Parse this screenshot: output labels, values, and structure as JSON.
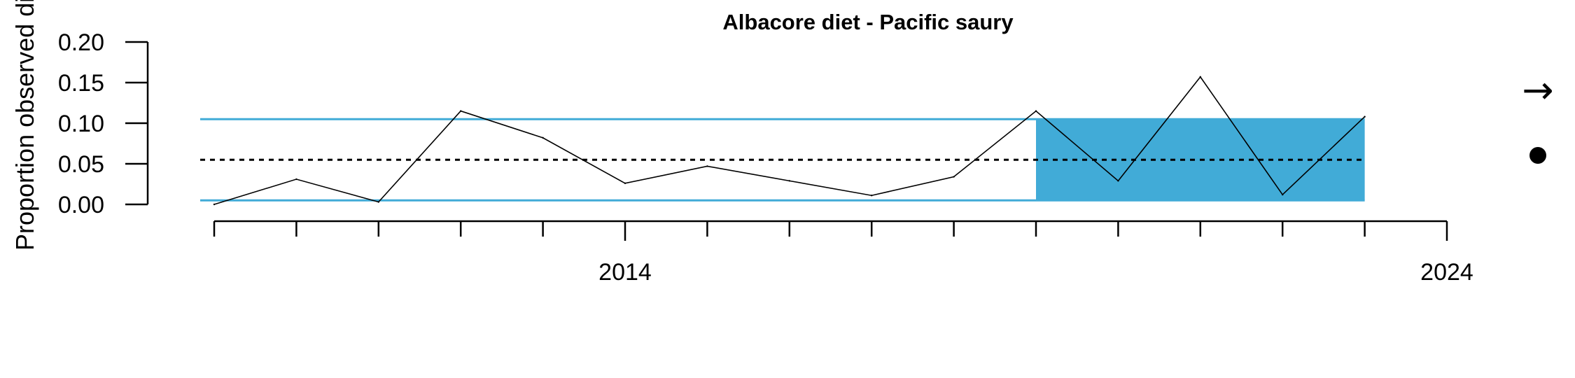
{
  "chart_data": {
    "type": "line",
    "title": "Albacore diet - Pacific saury",
    "ylabel": "Proportion observed diet",
    "xlabel": "",
    "xlim": [
      2008.9,
      2024
    ],
    "ylim": [
      0,
      0.2
    ],
    "y_ticks": [
      "0.00",
      "0.05",
      "0.10",
      "0.15",
      "0.20"
    ],
    "x_ticks": [
      2009,
      2010,
      2011,
      2012,
      2013,
      2014,
      2015,
      2016,
      2017,
      2018,
      2019,
      2020,
      2021,
      2022,
      2023,
      2024
    ],
    "x_tick_labels": [
      {
        "year": 2014,
        "label": "2014"
      },
      {
        "year": 2024,
        "label": "2024"
      }
    ],
    "series": [
      {
        "x": [
          2009,
          2010,
          2011,
          2012,
          2013,
          2014,
          2015,
          2016,
          2017,
          2018,
          2019,
          2020,
          2021,
          2022,
          2023
        ],
        "values": [
          0.0,
          0.031,
          0.003,
          0.115,
          0.082,
          0.026,
          0.047,
          0.029,
          0.011,
          0.034,
          0.115,
          0.029,
          0.157,
          0.012,
          0.108
        ],
        "color": "#000000"
      }
    ],
    "reference_lines": {
      "mean": 0.055,
      "upper_sd": 0.105,
      "lower_sd": 0.005,
      "mean_color": "#000000",
      "sd_color": "#41abd7"
    },
    "highlight_region": {
      "x": [
        2019,
        2023
      ],
      "y": [
        0.005,
        0.105
      ],
      "color": "#41abd7"
    },
    "legend_icons": [
      {
        "icon": "right-arrow-icon",
        "glyph": "→"
      },
      {
        "icon": "filled-circle-icon",
        "glyph": "●"
      }
    ]
  }
}
